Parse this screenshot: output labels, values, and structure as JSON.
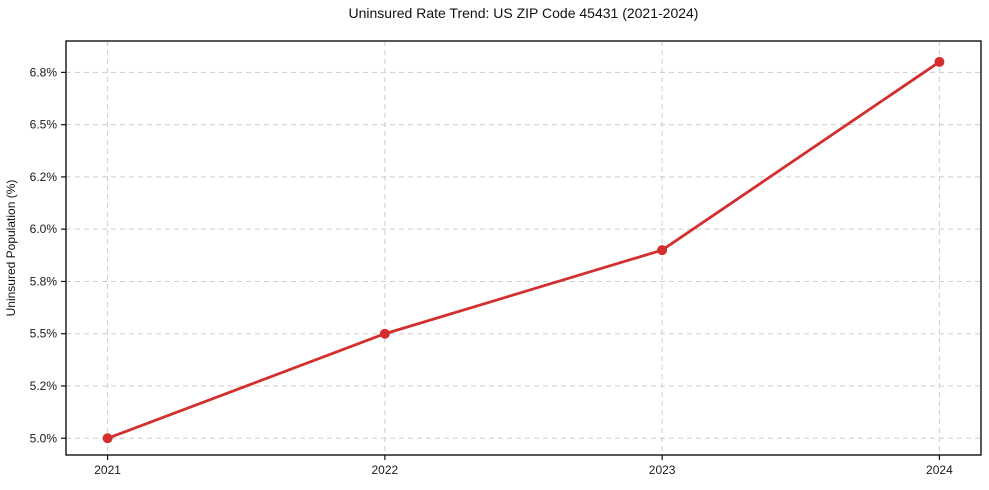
{
  "chart_data": {
    "type": "line",
    "title": "Uninsured Rate Trend: US ZIP Code 45431 (2021-2024)",
    "xlabel": "",
    "ylabel": "Uninsured Population (%)",
    "x": [
      2021,
      2022,
      2023,
      2024
    ],
    "values": [
      5.0,
      5.5,
      5.9,
      6.8
    ],
    "xtick_labels": [
      "2021",
      "2022",
      "2023",
      "2024"
    ],
    "ytick_values": [
      5.0,
      5.25,
      5.5,
      5.75,
      6.0,
      6.25,
      6.5,
      6.75
    ],
    "ytick_labels": [
      "5.0%",
      "5.2%",
      "5.5%",
      "5.8%",
      "6.0%",
      "6.2%",
      "6.5%",
      "6.8%"
    ],
    "xlim": [
      2020.85,
      2024.15
    ],
    "ylim": [
      4.92,
      6.9
    ],
    "grid": "dashed",
    "legend": "none",
    "line_color": "#d32f2f",
    "marker": "circle"
  }
}
